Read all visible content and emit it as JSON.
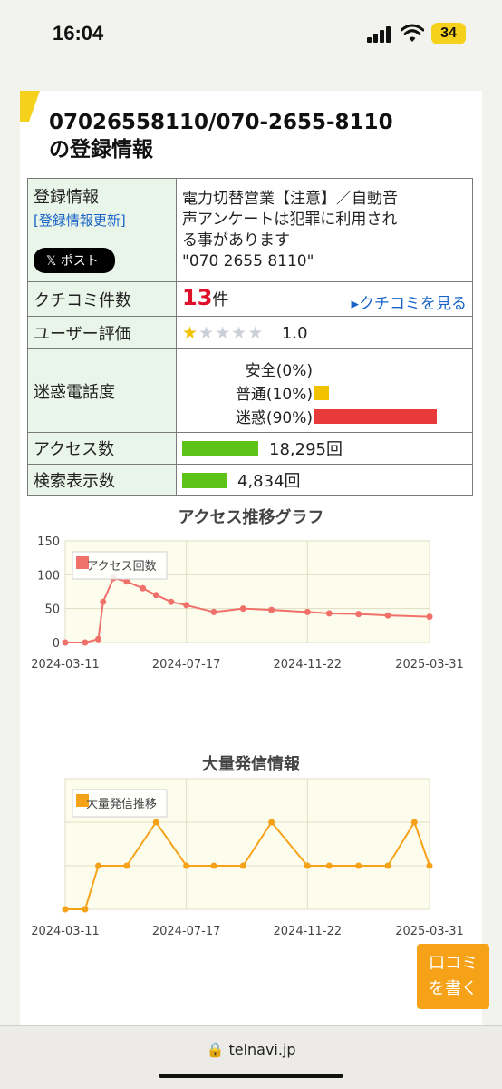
{
  "status": {
    "time": "16:04",
    "battery": "34"
  },
  "page": {
    "title_line1": "07026558110/070-2655-8110",
    "title_line2": "の登録情報"
  },
  "info": {
    "reg_label": "登録情報",
    "reg_update": "[登録情報更新]",
    "post_button": "𝕏 ポスト",
    "reg_desc_1": "電力切替営業【注意】／自動音",
    "reg_desc_2": "声アンケートは犯罪に利用され",
    "reg_desc_3": "る事があります",
    "reg_desc_4": "\"070 2655 8110\"",
    "review_label": "クチコミ件数",
    "review_count": "13",
    "review_unit": "件",
    "review_link": "▸クチコミを見る",
    "rating_label": "ユーザー評価",
    "rating_value": "1.0",
    "rating_stars_filled": 1,
    "nuisance_label": "迷惑電話度",
    "nuisance": [
      {
        "label": "安全(0%)",
        "pct": 0,
        "color": "#5ec318"
      },
      {
        "label": "普通(10%)",
        "pct": 10,
        "color": "#f2c200"
      },
      {
        "label": "迷惑(90%)",
        "pct": 90,
        "color": "#e83a3a"
      }
    ],
    "access_label": "アクセス数",
    "access_value": "18,295回",
    "search_label": "検索表示数",
    "search_value": "4,834回"
  },
  "chart_data": [
    {
      "type": "line",
      "title": "アクセス推移グラフ",
      "legend": "アクセス回数",
      "color": "#f0706a",
      "ylim": [
        0,
        150
      ],
      "yticks": [
        "150",
        "100",
        "50",
        "0"
      ],
      "xticks": [
        "2024-03-11",
        "2024-07-17",
        "2024-11-22",
        "2025-03-31"
      ],
      "series": [
        {
          "x": [
            "2024-03-11",
            "2024-04-01",
            "2024-04-15",
            "2024-04-20",
            "2024-05-01",
            "2024-05-15",
            "2024-06-01",
            "2024-06-15",
            "2024-07-01",
            "2024-07-17",
            "2024-08-15",
            "2024-09-15",
            "2024-10-15",
            "2024-11-22",
            "2024-12-15",
            "2025-01-15",
            "2025-02-15",
            "2025-03-31"
          ],
          "values": [
            0,
            0,
            5,
            60,
            95,
            90,
            80,
            70,
            60,
            55,
            45,
            50,
            48,
            45,
            43,
            42,
            40,
            38
          ]
        }
      ]
    },
    {
      "type": "line",
      "title": "大量発信情報",
      "legend": "大量発信推移",
      "color": "#f6a219",
      "xticks": [
        "2024-03-11",
        "2024-07-17",
        "2024-11-22",
        "2025-03-31"
      ],
      "series": [
        {
          "x": [
            "2024-03-11",
            "2024-04-01",
            "2024-04-15",
            "2024-05-15",
            "2024-06-15",
            "2024-07-17",
            "2024-08-15",
            "2024-09-15",
            "2024-10-15",
            "2024-11-22",
            "2024-12-15",
            "2025-01-15",
            "2025-02-15",
            "2025-03-15",
            "2025-03-31"
          ],
          "values": [
            0,
            0,
            1,
            1,
            2,
            1,
            1,
            1,
            2,
            1,
            1,
            1,
            1,
            2,
            1
          ]
        }
      ]
    }
  ],
  "floating": {
    "line1": "口コミ",
    "line2": "を書く"
  },
  "browser": {
    "address": "🔒 telnavi.jp"
  }
}
